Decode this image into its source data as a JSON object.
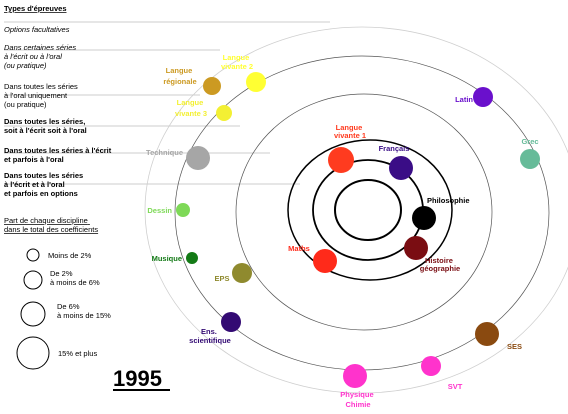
{
  "legend": {
    "title": "Types d'épreuves",
    "items": [
      {
        "lines": [
          "Options facultatives"
        ],
        "style": "italic"
      },
      {
        "lines": [
          "Dans certaines séries",
          "à l'écrit ou à l'oral",
          "(ou pratique)"
        ],
        "style": "italic"
      },
      {
        "lines": [
          "Dans toutes les séries",
          "à l'oral uniquement",
          "(ou pratique)"
        ],
        "style": "normal"
      },
      {
        "lines": [
          "Dans toutes les séries,",
          "soit à l'écrit soit à l'oral"
        ],
        "style": "bold"
      },
      {
        "lines": [
          "Dans toutes les séries à l'écrit",
          "et parfois à l'oral"
        ],
        "style": "bold"
      },
      {
        "lines": [
          "Dans toutes les séries",
          "à l'écrit et à l'oral",
          "et parfois en options"
        ],
        "style": "bold"
      }
    ]
  },
  "size_legend": {
    "title_lines": [
      "Part de chaque discipline",
      "dans le total des coefficients"
    ],
    "items": [
      {
        "label_lines": [
          "Moins de 2%"
        ]
      },
      {
        "label_lines": [
          "De 2%",
          "à moins de 6%"
        ]
      },
      {
        "label_lines": [
          "De 6%",
          "à moins de 15%"
        ]
      },
      {
        "label_lines": [
          "15% et plus"
        ]
      }
    ]
  },
  "year": "1995",
  "disciplines": [
    {
      "lines": [
        "Langue",
        "vivante 1"
      ],
      "color": "#ff3b1f"
    },
    {
      "lines": [
        "Français"
      ],
      "color": "#3a0d86"
    },
    {
      "lines": [
        "Philosophie"
      ],
      "color": "#000000"
    },
    {
      "lines": [
        "Histoire",
        "géographie"
      ],
      "color": "#7a0d12"
    },
    {
      "lines": [
        "Maths"
      ],
      "color": "#ff2a1a"
    },
    {
      "lines": [
        "Langue",
        "régionale"
      ],
      "color": "#cc9a22"
    },
    {
      "lines": [
        "Langue",
        "vivante 2"
      ],
      "color": "#ffff33"
    },
    {
      "lines": [
        "Langue",
        "vivante 3"
      ],
      "color": "#f3f033"
    },
    {
      "lines": [
        "Technique"
      ],
      "color": "#a6a6a6"
    },
    {
      "lines": [
        "Dessin"
      ],
      "color": "#7ed957"
    },
    {
      "lines": [
        "Musique"
      ],
      "color": "#137a16"
    },
    {
      "lines": [
        "EPS"
      ],
      "color": "#8f8a2e"
    },
    {
      "lines": [
        "Ens.",
        "scientifique"
      ],
      "color": "#330a73"
    },
    {
      "lines": [
        "Physique",
        "Chimie"
      ],
      "color": "#ff33cc"
    },
    {
      "lines": [
        "SVT"
      ],
      "color": "#ff33cc"
    },
    {
      "lines": [
        "SES"
      ],
      "color": "#8a4a10"
    },
    {
      "lines": [
        "Grec"
      ],
      "color": "#66bb99"
    },
    {
      "lines": [
        "Latin"
      ],
      "color": "#6a10cc"
    }
  ]
}
